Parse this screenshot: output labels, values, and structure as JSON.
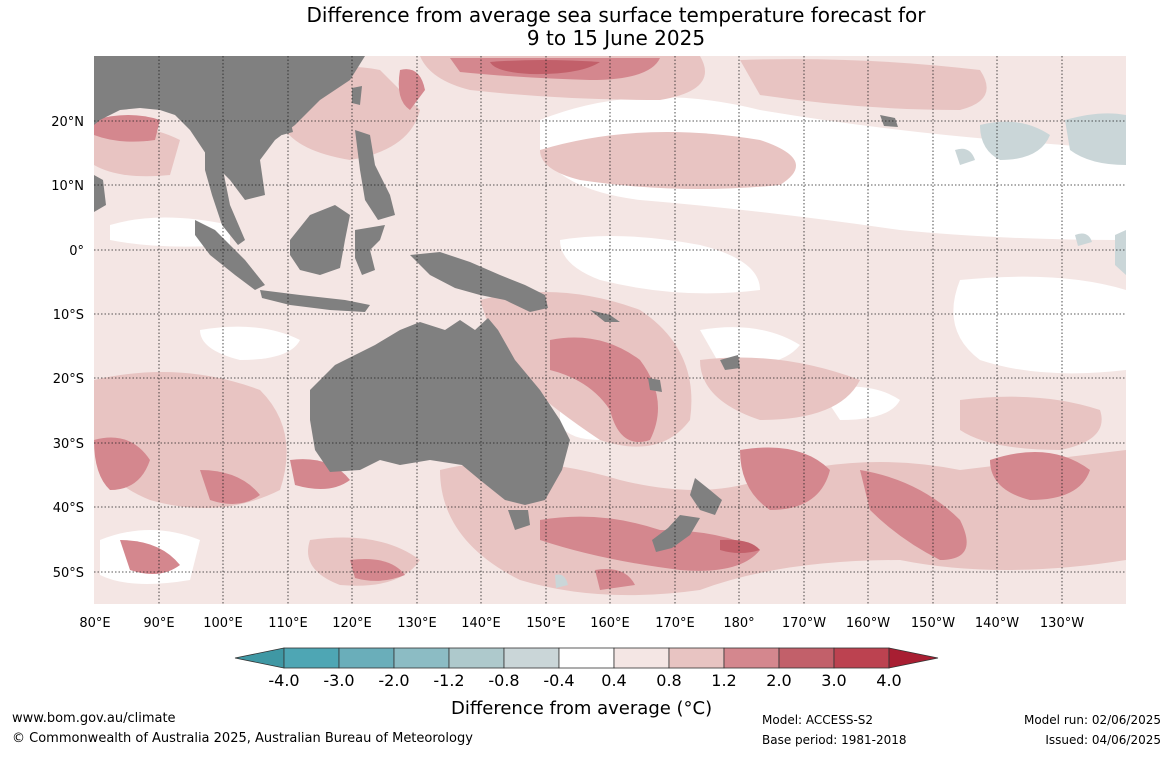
{
  "title_line1": "Difference from average sea surface temperature forecast for",
  "title_line2": "9 to 15 June 2025",
  "lat_labels": [
    "20°N",
    "10°N",
    "0°",
    "10°S",
    "20°S",
    "30°S",
    "40°S",
    "50°S"
  ],
  "lon_labels": [
    "80°E",
    "90°E",
    "100°E",
    "110°E",
    "120°E",
    "130°E",
    "140°E",
    "150°E",
    "160°E",
    "170°E",
    "180°",
    "170°W",
    "160°W",
    "150°W",
    "140°W",
    "130°W"
  ],
  "colorbar": {
    "title": "Difference from average (°C)",
    "tick_labels": [
      "-4.0",
      "-3.0",
      "-2.0",
      "-1.2",
      "-0.8",
      "-0.4",
      "0.4",
      "0.8",
      "1.2",
      "2.0",
      "3.0",
      "4.0"
    ],
    "colors": [
      "#3f98a4",
      "#4ea6b4",
      "#6aaeba",
      "#8cbcc4",
      "#aec9cc",
      "#cad6d8",
      "#ffffff",
      "#f4e6e4",
      "#e8c4c2",
      "#d4878e",
      "#c2606a",
      "#bc4250",
      "#a81e32"
    ]
  },
  "footer": {
    "website": "www.bom.gov.au/climate",
    "copyright": "© Commonwealth of Australia 2025, Australian Bureau of Meteorology",
    "model": "Model: ACCESS-S2",
    "base_period": "Base period: 1981-2018",
    "model_run": "Model run: 02/06/2025",
    "issued": "Issued: 04/06/2025"
  }
}
